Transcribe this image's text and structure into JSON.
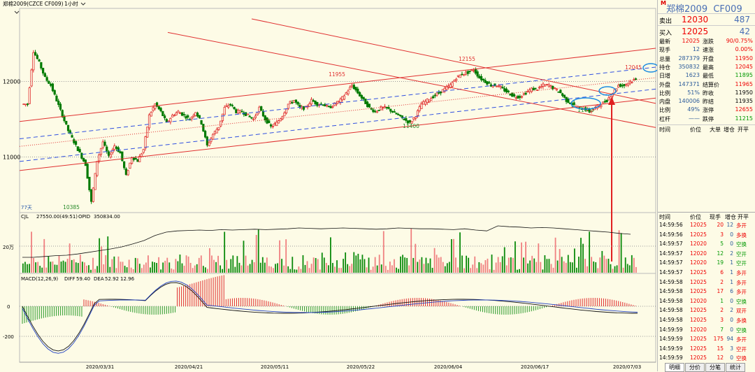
{
  "chart_title": "郑棉2009(CZCE CF009)",
  "period": "1小时",
  "panel": {
    "name": "郑棉2009",
    "code": "CF009",
    "mark": "M",
    "sell": {
      "label": "卖出",
      "price": "12030",
      "vol": "487"
    },
    "buy": {
      "label": "买入",
      "price": "12025",
      "vol": "42"
    },
    "quotes": [
      {
        "l1": "最新",
        "v1": "12025",
        "c1": "red",
        "l2": "涨跌",
        "v2": "90/0.75%",
        "c2": "red"
      },
      {
        "l1": "现手",
        "v1": "12",
        "c1": "blu",
        "l2": "速涨",
        "v2": "0.00%",
        "c2": "red"
      },
      {
        "l1": "总量",
        "v1": "287379",
        "c1": "blu",
        "l2": "开盘",
        "v2": "11950",
        "c2": "red"
      },
      {
        "l1": "持仓",
        "v1": "350832",
        "c1": "blu",
        "l2": "最高",
        "v2": "12045",
        "c2": "red"
      },
      {
        "l1": "日增",
        "v1": "1623",
        "c1": "blu",
        "l2": "最低",
        "v2": "11895",
        "c2": "grn"
      },
      {
        "l1": "外盘",
        "v1": "147371",
        "c1": "blu",
        "l2": "结算价",
        "v2": "11965",
        "c2": "red"
      },
      {
        "l1": "比例",
        "v1": "51%",
        "c1": "blu",
        "l2": "昨收",
        "v2": "11950",
        "c2": "blk"
      },
      {
        "l1": "内盘",
        "v1": "140006",
        "c1": "blu",
        "l2": "昨结",
        "v2": "11935",
        "c2": "blk"
      },
      {
        "l1": "比例",
        "v1": "49%",
        "c1": "blu",
        "l2": "涨停",
        "v2": "12655",
        "c2": "red"
      },
      {
        "l1": "杠杆",
        "v1": "——",
        "c1": "blu",
        "l2": "跌停",
        "v2": "11215",
        "c2": "grn"
      }
    ],
    "top_headers": [
      "时间",
      "价位",
      "大单",
      "增仓",
      "开平"
    ],
    "tick_headers": [
      "时间",
      "价位",
      "现手",
      "增仓",
      "开平"
    ],
    "ticks": [
      [
        "14:59:56",
        "12025",
        "20",
        "12",
        "多开",
        "red"
      ],
      [
        "14:59:56",
        "12025",
        "3",
        "0",
        "多换",
        "red"
      ],
      [
        "14:59:57",
        "12020",
        "5",
        "0",
        "空换",
        "grn"
      ],
      [
        "14:59:57",
        "12020",
        "12",
        "2",
        "空开",
        "grn"
      ],
      [
        "14:59:57",
        "12020",
        "19",
        "1",
        "空开",
        "grn"
      ],
      [
        "14:59:57",
        "12025",
        "6",
        "1",
        "多开",
        "red"
      ],
      [
        "14:59:58",
        "12025",
        "2",
        "1",
        "多开",
        "red"
      ],
      [
        "14:59:58",
        "12025",
        "17",
        "6",
        "多开",
        "red"
      ],
      [
        "14:59:58",
        "12020",
        "1",
        "0",
        "空换",
        "grn"
      ],
      [
        "14:59:58",
        "12025",
        "2",
        "2",
        "双开",
        "red"
      ],
      [
        "14:59:58",
        "12025",
        "3",
        "0",
        "多换",
        "red"
      ],
      [
        "14:59:59",
        "12020",
        "7",
        "0",
        "空换",
        "grn"
      ],
      [
        "14:59:59",
        "12025",
        "175",
        "94",
        "多开",
        "red"
      ],
      [
        "14:59:59",
        "12025",
        "15",
        "3",
        "空开",
        "red"
      ],
      [
        "14:59:59",
        "12025",
        "12",
        "0",
        "空换",
        "red"
      ]
    ],
    "tabs": [
      "明细",
      "分价",
      "分笔",
      "统计"
    ]
  },
  "chart_data": {
    "type": "candlestick",
    "price_axis": {
      "ticks": [
        12000,
        11000
      ],
      "ylim": [
        10300,
        12950
      ]
    },
    "x_tick_labels": [
      "2020/03/31",
      "2020/04/21",
      "2020/05/11",
      "2020/05/22",
      "2020/06/04",
      "2020/06/17",
      "2020/07/03"
    ],
    "annotations": [
      {
        "text": "10385",
        "price": 10385,
        "color": "grn"
      },
      {
        "text": "11955",
        "price": 11955,
        "color": "red"
      },
      {
        "text": "11400",
        "price": 11400,
        "color": "grn"
      },
      {
        "text": "12155",
        "price": 12155,
        "color": "red"
      },
      {
        "text": "11600",
        "price": 11600,
        "color": "grn"
      },
      {
        "text": "12045",
        "price": 12045,
        "color": "red"
      }
    ],
    "corner_label": "77天",
    "price_path": [
      11700,
      12400,
      12250,
      12050,
      11950,
      11750,
      11550,
      11350,
      11200,
      11050,
      10900,
      10400,
      10950,
      11200,
      11000,
      11150,
      11050,
      10750,
      11000,
      10950,
      11100,
      11550,
      11700,
      11600,
      11450,
      11550,
      11600,
      11550,
      11500,
      11600,
      11450,
      11150,
      11300,
      11400,
      11650,
      11700,
      11600,
      11600,
      11550,
      11500,
      11650,
      11500,
      11400,
      11450,
      11550,
      11700,
      11750,
      11650,
      11650,
      11750,
      11700,
      11700,
      11650,
      11700,
      11750,
      11850,
      11950,
      11850,
      11750,
      11650,
      11600,
      11650,
      11650,
      11600,
      11550,
      11500,
      11450,
      11550,
      11700,
      11750,
      11800,
      11850,
      11900,
      11950,
      12050,
      12100,
      12120,
      12155,
      12050,
      12000,
      11950,
      11950,
      11900,
      11850,
      11800,
      11800,
      11850,
      11900,
      11900,
      11950,
      11950,
      11900,
      11850,
      11750,
      11700,
      11650,
      11650,
      11600,
      11650,
      11700,
      11750,
      11850,
      11950,
      11950,
      12000,
      12025
    ],
    "oi_series": {
      "label": "OPID",
      "value": "350834.00",
      "path": [
        0.2,
        0.2,
        0.22,
        0.24,
        0.25,
        0.28,
        0.32,
        0.36,
        0.4,
        0.45,
        0.52,
        0.6,
        0.72,
        0.8,
        0.83,
        0.84,
        0.85,
        0.84,
        0.86,
        0.85,
        0.86,
        0.87,
        0.86,
        0.87,
        0.88,
        0.9,
        0.89,
        0.88,
        0.89,
        0.9,
        0.89,
        0.88,
        0.87,
        0.88,
        0.9,
        0.89,
        0.88,
        0.88,
        0.87,
        0.86,
        0.88,
        0.85,
        0.83,
        0.95,
        0.93,
        0.92,
        0.9,
        0.91,
        0.9,
        0.88,
        0.86,
        0.84,
        0.82,
        0.8,
        0.77,
        0.75
      ]
    },
    "volume": {
      "label": "CJL",
      "value": "27550.00(49:51)",
      "tick_label": "20万"
    },
    "macd": {
      "label": "MACD(12,26,9)",
      "diff_label": "DIFF",
      "diff": "59.40",
      "dea_label": "DEA",
      "dea": "52.92",
      "macd": "12.96",
      "ticks": [
        "0",
        "-200"
      ]
    }
  }
}
